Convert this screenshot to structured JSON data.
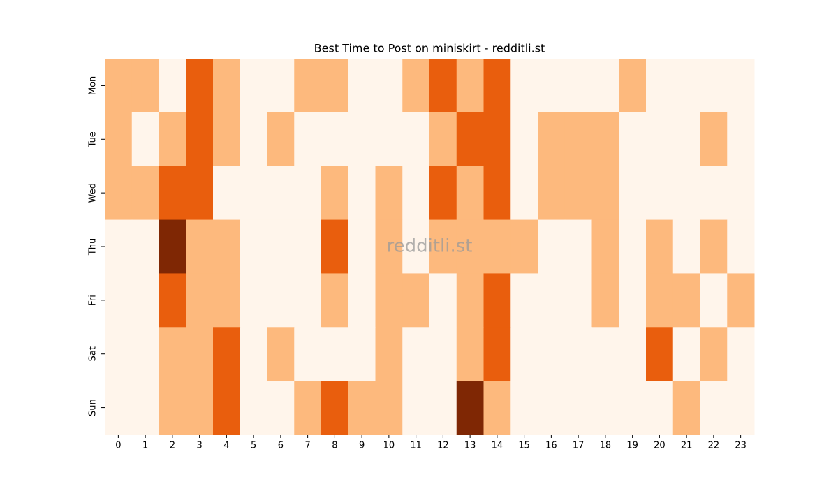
{
  "chart_data": {
    "type": "heatmap",
    "title": "Best Time to Post on miniskirt - redditli.st",
    "watermark": "redditli.st",
    "x": [
      0,
      1,
      2,
      3,
      4,
      5,
      6,
      7,
      8,
      9,
      10,
      11,
      12,
      13,
      14,
      15,
      16,
      17,
      18,
      19,
      20,
      21,
      22,
      23
    ],
    "y": [
      "Mon",
      "Tue",
      "Wed",
      "Thu",
      "Fri",
      "Sat",
      "Sun"
    ],
    "values": [
      [
        1,
        1,
        0,
        2,
        1,
        0,
        0,
        1,
        1,
        0,
        0,
        1,
        2,
        1,
        2,
        0,
        0,
        0,
        0,
        1,
        0,
        0,
        0,
        0
      ],
      [
        1,
        0,
        1,
        2,
        1,
        0,
        1,
        0,
        0,
        0,
        0,
        0,
        1,
        2,
        2,
        0,
        1,
        1,
        1,
        0,
        0,
        0,
        1,
        0
      ],
      [
        1,
        1,
        2,
        2,
        0,
        0,
        0,
        0,
        1,
        0,
        1,
        0,
        2,
        1,
        2,
        0,
        1,
        1,
        1,
        0,
        0,
        0,
        0,
        0
      ],
      [
        0,
        0,
        3,
        1,
        1,
        0,
        0,
        0,
        2,
        0,
        1,
        0,
        1,
        1,
        1,
        1,
        0,
        0,
        1,
        0,
        1,
        0,
        1,
        0
      ],
      [
        0,
        0,
        2,
        1,
        1,
        0,
        0,
        0,
        1,
        0,
        1,
        1,
        0,
        1,
        2,
        0,
        0,
        0,
        1,
        0,
        1,
        1,
        0,
        1
      ],
      [
        0,
        0,
        1,
        1,
        2,
        0,
        1,
        0,
        0,
        0,
        1,
        0,
        0,
        1,
        2,
        0,
        0,
        0,
        0,
        0,
        2,
        0,
        1,
        0
      ],
      [
        0,
        0,
        1,
        1,
        2,
        0,
        0,
        1,
        2,
        1,
        1,
        0,
        0,
        3,
        1,
        0,
        0,
        0,
        0,
        0,
        0,
        1,
        0,
        0
      ]
    ],
    "vlim": [
      0,
      3
    ],
    "colors": [
      "#fff5eb",
      "#fdb97d",
      "#e95e0d",
      "#7f2704"
    ]
  }
}
